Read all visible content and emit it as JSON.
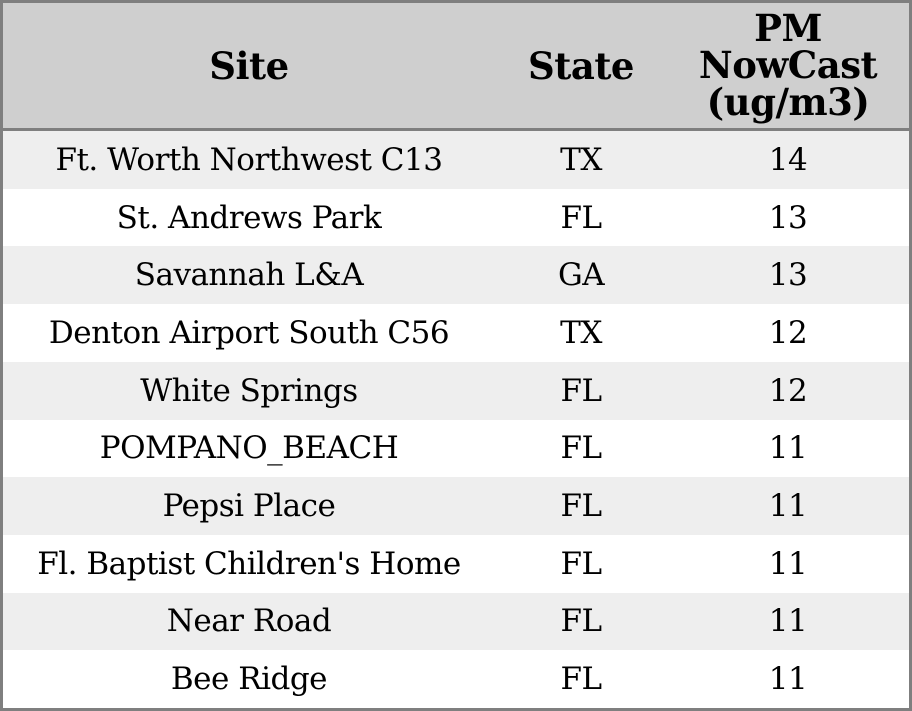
{
  "chart_data": {
    "type": "table",
    "columns": [
      "Site",
      "State",
      "PM NowCast (ug/m3)"
    ],
    "pm_header_lines": [
      "PM",
      "NowCast",
      "(ug/m3)"
    ],
    "rows": [
      {
        "site": "Ft. Worth Northwest C13",
        "state": "TX",
        "pm_nowcast": "14"
      },
      {
        "site": "St. Andrews Park",
        "state": "FL",
        "pm_nowcast": "13"
      },
      {
        "site": "Savannah L&A",
        "state": "GA",
        "pm_nowcast": "13"
      },
      {
        "site": "Denton Airport South C56",
        "state": "TX",
        "pm_nowcast": "12"
      },
      {
        "site": "White Springs",
        "state": "FL",
        "pm_nowcast": "12"
      },
      {
        "site": "POMPANO_BEACH",
        "state": "FL",
        "pm_nowcast": "11"
      },
      {
        "site": "Pepsi Place",
        "state": "FL",
        "pm_nowcast": "11"
      },
      {
        "site": "Fl. Baptist Children's Home",
        "state": "FL",
        "pm_nowcast": "11"
      },
      {
        "site": "Near Road",
        "state": "FL",
        "pm_nowcast": "11"
      },
      {
        "site": "Bee Ridge",
        "state": "FL",
        "pm_nowcast": "11"
      }
    ]
  },
  "colors": {
    "header_bg": "#cfcfcf",
    "border": "#7f7f7f",
    "row_alt_bg": "#eeeeee",
    "row_bg": "#ffffff",
    "text": "#000000"
  }
}
